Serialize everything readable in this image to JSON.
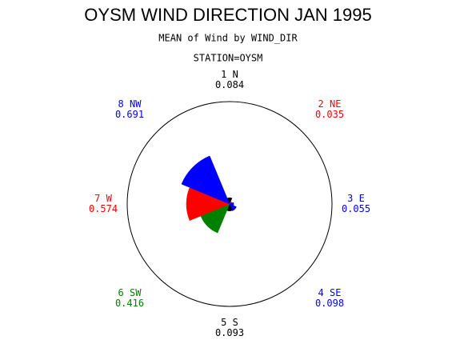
{
  "chart_data": {
    "type": "star",
    "title": "OYSM WIND DIRECTION JAN 1995",
    "subtitle": "MEAN of Wind by WIND_DIR",
    "group_label": "STATION=OYSM",
    "categories": [
      "1 N",
      "2 NE",
      "3 E",
      "4 SE",
      "5 S",
      "6 SW",
      "7 W",
      "8 NW"
    ],
    "values": [
      0.084,
      0.035,
      0.055,
      0.098,
      0.093,
      0.416,
      0.574,
      0.691
    ],
    "colors": [
      "#000000",
      "#ff0000",
      "#0000ff",
      "#0000ff",
      "#000000",
      "#008000",
      "#ff0000",
      "#0000ff"
    ],
    "rlim": [
      0,
      1.36
    ]
  }
}
